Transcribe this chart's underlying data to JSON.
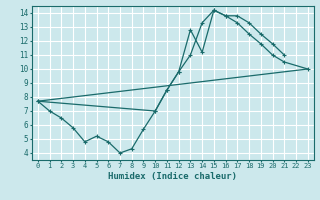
{
  "xlabel": "Humidex (Indice chaleur)",
  "bg_color": "#cce8ec",
  "grid_color": "#b0d8dc",
  "line_color": "#1a6b6b",
  "xlim": [
    -0.5,
    23.5
  ],
  "ylim": [
    3.5,
    14.5
  ],
  "xticks": [
    0,
    1,
    2,
    3,
    4,
    5,
    6,
    7,
    8,
    9,
    10,
    11,
    12,
    13,
    14,
    15,
    16,
    17,
    18,
    19,
    20,
    21,
    22,
    23
  ],
  "yticks": [
    4,
    5,
    6,
    7,
    8,
    9,
    10,
    11,
    12,
    13,
    14
  ],
  "line1_x": [
    0,
    1,
    2,
    3,
    4,
    5,
    6,
    7,
    8,
    9,
    10,
    11,
    12,
    13,
    14,
    15,
    16,
    17,
    18,
    19,
    20,
    21
  ],
  "line1_y": [
    7.7,
    7.0,
    6.5,
    5.8,
    4.8,
    5.2,
    4.8,
    4.0,
    4.3,
    5.7,
    7.0,
    8.5,
    9.8,
    12.8,
    11.2,
    14.2,
    13.8,
    13.8,
    13.3,
    12.5,
    11.8,
    11.0
  ],
  "line2_x": [
    0,
    10,
    11,
    12,
    13,
    14,
    15,
    16,
    17,
    18,
    19,
    20,
    21,
    23
  ],
  "line2_y": [
    7.7,
    7.0,
    8.5,
    9.8,
    11.0,
    13.3,
    14.2,
    13.8,
    13.3,
    12.5,
    11.8,
    11.0,
    10.5,
    10.0
  ],
  "line3_x": [
    0,
    23
  ],
  "line3_y": [
    7.7,
    10.0
  ]
}
